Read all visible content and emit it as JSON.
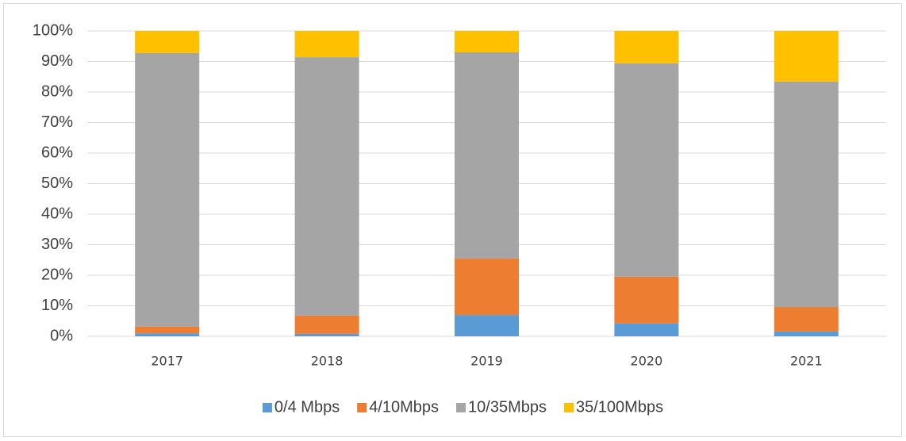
{
  "chart_data": {
    "type": "stacked_bar",
    "categories": [
      "2017",
      "2018",
      "2019",
      "2020",
      "2021"
    ],
    "series": [
      {
        "name": "0/4 Mbps",
        "color": "#5b9bd5",
        "values": [
          1,
          0.8,
          7,
          4.2,
          1.6
        ]
      },
      {
        "name": "4/10Mbps",
        "color": "#ed7d31",
        "values": [
          2.2,
          6,
          18.5,
          15.3,
          8
        ]
      },
      {
        "name": "10/35Mbps",
        "color": "#a5a5a5",
        "values": [
          89.6,
          84.6,
          67.5,
          69.9,
          73.8
        ]
      },
      {
        "name": "35/100Mbps",
        "color": "#ffc000",
        "values": [
          7.2,
          8.6,
          7,
          10.6,
          16.6
        ]
      }
    ],
    "ylim": [
      0,
      100
    ],
    "yticks": [
      {
        "value": 0,
        "label": "0%"
      },
      {
        "value": 10,
        "label": "10%"
      },
      {
        "value": 20,
        "label": "20%"
      },
      {
        "value": 30,
        "label": "30%"
      },
      {
        "value": 40,
        "label": "40%"
      },
      {
        "value": 50,
        "label": "50%"
      },
      {
        "value": 60,
        "label": "60%"
      },
      {
        "value": 70,
        "label": "70%"
      },
      {
        "value": 80,
        "label": "80%"
      },
      {
        "value": 90,
        "label": "90%"
      },
      {
        "value": 100,
        "label": "100%"
      }
    ],
    "grid": true,
    "legend": "bottom"
  }
}
